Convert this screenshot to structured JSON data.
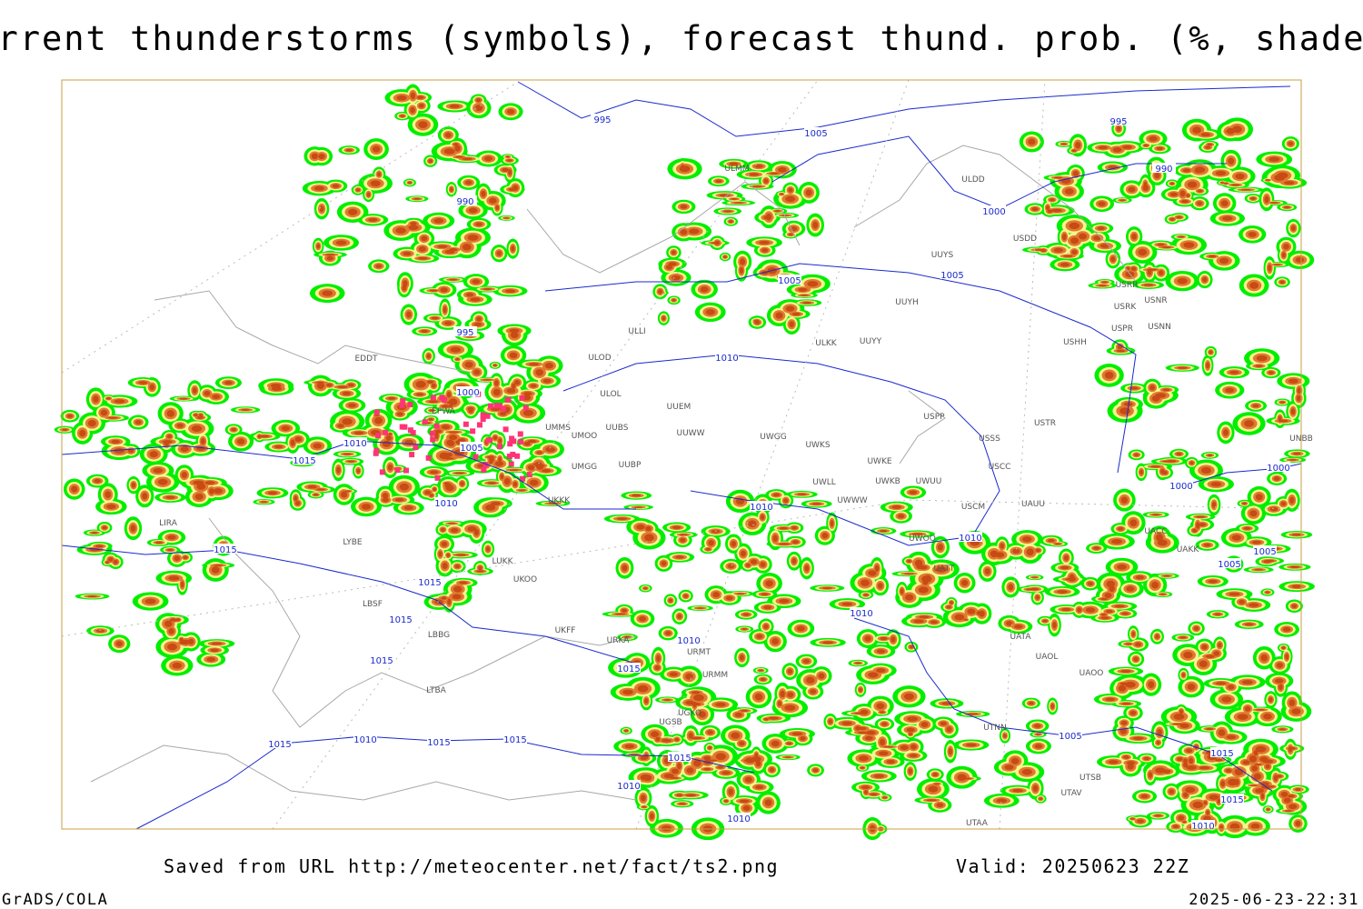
{
  "header": {
    "title": "Current thunderstorms (symbols), forecast thund. prob. (%, shaded)"
  },
  "footer": {
    "source": "Saved from URL http://meteocenter.net/fact/ts2.png",
    "valid": "Valid: 20250623 22Z",
    "software": "GrADS/COLA",
    "timestamp": "2025-06-23-22:31"
  },
  "map": {
    "isobar_labels": [
      995,
      1005,
      995,
      990,
      990,
      1000,
      1005,
      1005,
      995,
      1010,
      1000,
      1005,
      1010,
      1015,
      1010,
      1010,
      1015,
      1015,
      1015,
      1015,
      1010,
      1015,
      1010,
      1010,
      1000,
      1000,
      1005,
      1005,
      1015,
      1010,
      1015,
      1015,
      1015,
      1010,
      1010,
      1005,
      1015,
      1015,
      1010
    ],
    "stations": [
      "EDDT",
      "EPWA",
      "UMMS",
      "UMOO",
      "UUBS",
      "UMGG",
      "UUBP",
      "UKKK",
      "LUKK",
      "UKOO",
      "UKFF",
      "LIRA",
      "LYBE",
      "LBSF",
      "LBBG",
      "LTBA",
      "URKA",
      "URMT",
      "URMM",
      "UGKO",
      "UGSB",
      "ULLI",
      "ULOL",
      "ULOD",
      "UUEM",
      "UUWW",
      "UWGG",
      "UWKS",
      "UWKE",
      "UWKB",
      "UWUU",
      "UWWW",
      "UWLL",
      "ULKK",
      "UUYY",
      "UUYH",
      "UUYS",
      "ULDD",
      "USDD",
      "USRR",
      "USRK",
      "USNR",
      "USPR",
      "USNN",
      "USHH",
      "USPP",
      "USSS",
      "USTR",
      "USCC",
      "USCM",
      "UAUU",
      "UWOO",
      "UATT",
      "UACC",
      "UAKK",
      "UATA",
      "UAOL",
      "UAOO",
      "UTNN",
      "UTSB",
      "UTAV",
      "UTAA",
      "UNBB",
      "ULMM"
    ]
  }
}
